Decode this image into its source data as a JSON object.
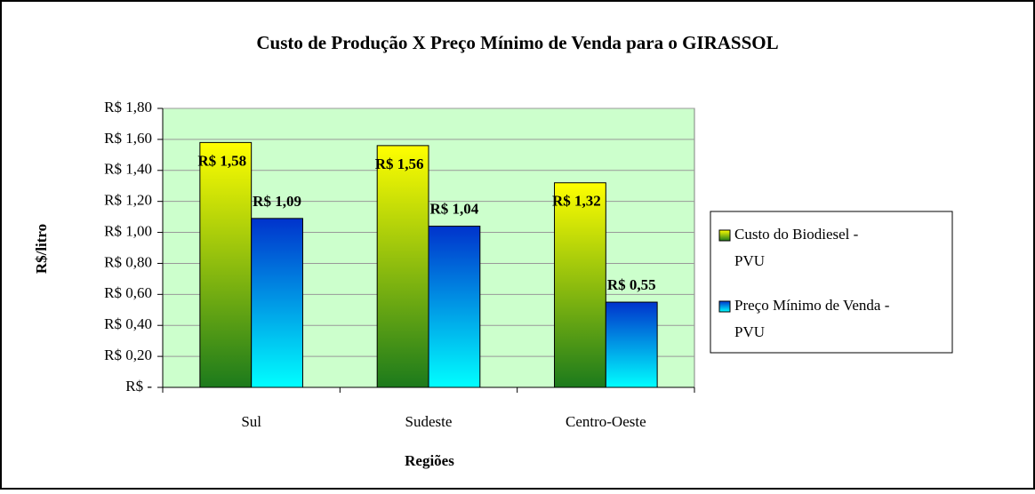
{
  "chart_data": {
    "type": "bar",
    "title": "Custo de Produção X Preço Mínimo de Venda para o GIRASSOL",
    "x_label": "Regiões",
    "y_label": "R$/litro",
    "categories": [
      "Sul",
      "Sudeste",
      "Centro-Oeste"
    ],
    "series": [
      {
        "name": "Custo do Biodiesel - PVU",
        "color": "#ffff00",
        "gradient_end": "#1c7a1c",
        "values": [
          1.58,
          1.56,
          1.32
        ],
        "value_labels": [
          "R$ 1,58",
          "R$ 1,56",
          "R$ 1,32"
        ]
      },
      {
        "name": "Preço Mínimo de Venda - PVU",
        "color": "#0033cc",
        "gradient_end": "#00ffff",
        "values": [
          1.09,
          1.04,
          0.55
        ],
        "value_labels": [
          "R$ 1,09",
          "R$ 1,04",
          "R$ 0,55"
        ]
      }
    ],
    "ylim": [
      0,
      1.8
    ],
    "yticks": [
      {
        "value": 0,
        "label": "R$ -"
      },
      {
        "value": 0.2,
        "label": "R$ 0,20"
      },
      {
        "value": 0.4,
        "label": "R$ 0,40"
      },
      {
        "value": 0.6,
        "label": "R$ 0,60"
      },
      {
        "value": 0.8,
        "label": "R$ 0,80"
      },
      {
        "value": 1.0,
        "label": "R$ 1,00"
      },
      {
        "value": 1.2,
        "label": "R$ 1,20"
      },
      {
        "value": 1.4,
        "label": "R$ 1,40"
      },
      {
        "value": 1.6,
        "label": "R$ 1,60"
      },
      {
        "value": 1.8,
        "label": "R$ 1,80"
      }
    ],
    "grid": true,
    "plot_background": "#ccffcc",
    "legend": "right"
  }
}
